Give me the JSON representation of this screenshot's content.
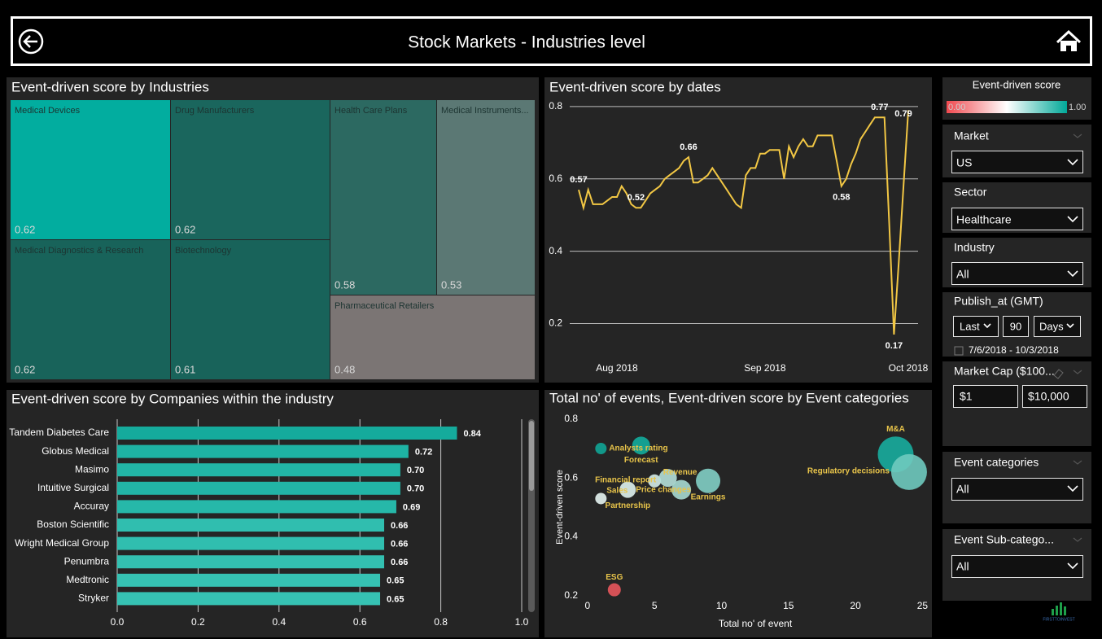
{
  "header": {
    "title": "Stock Markets - Industries level"
  },
  "chart_data": [
    {
      "type": "treemap",
      "title": "Event-driven score by Industries",
      "categories": [
        "Medical Devices",
        "Drug Manufacturers",
        "Medical Diagnostics & Research",
        "Biotechnology",
        "Health Care Plans",
        "Medical Instruments...",
        "Pharmaceutical Retailers"
      ],
      "values": [
        0.62,
        0.62,
        0.62,
        0.61,
        0.58,
        0.53,
        0.48
      ],
      "colors": [
        "#02ad9f",
        "#1a665d",
        "#18635a",
        "#18635a",
        "#2c6961",
        "#5b7874",
        "#7b7574"
      ]
    },
    {
      "type": "line",
      "title": "Event-driven score by dates",
      "categories": [
        null,
        null,
        null,
        null,
        null,
        null,
        null,
        null,
        "Aug 2018",
        null,
        null,
        null,
        null,
        null,
        null,
        null,
        null,
        null,
        null,
        null,
        null,
        null,
        null,
        null,
        null,
        null,
        null,
        null,
        null,
        null,
        null,
        null,
        null,
        null,
        null,
        null,
        null,
        null,
        null,
        "Sep 2018",
        null,
        null,
        null,
        null,
        null,
        null,
        null,
        null,
        null,
        null,
        null,
        null,
        null,
        null,
        null,
        null,
        null,
        null,
        null,
        null,
        null,
        null,
        null,
        null,
        null,
        null,
        null,
        null,
        null,
        "Oct 2018"
      ],
      "values": [
        0.57,
        0.52,
        0.57,
        0.53,
        0.53,
        0.53,
        0.54,
        0.55,
        0.55,
        0.58,
        0.56,
        0.53,
        0.52,
        0.52,
        0.54,
        0.56,
        0.57,
        0.58,
        0.6,
        0.61,
        0.62,
        0.63,
        0.65,
        0.66,
        0.59,
        0.59,
        0.6,
        0.61,
        0.63,
        0.61,
        0.59,
        0.57,
        0.55,
        0.53,
        0.52,
        0.61,
        0.63,
        0.63,
        0.67,
        0.67,
        0.68,
        0.68,
        0.68,
        0.6,
        0.69,
        0.66,
        0.69,
        0.71,
        0.69,
        0.69,
        0.72,
        0.72,
        0.72,
        0.72,
        0.65,
        0.58,
        0.6,
        0.64,
        0.67,
        0.71,
        0.73,
        0.75,
        0.77,
        0.77,
        0.77,
        0.48,
        0.17,
        0.37,
        0.58,
        0.79
      ],
      "value_labels": [
        "0.57",
        null,
        null,
        null,
        null,
        null,
        null,
        null,
        null,
        null,
        null,
        null,
        "0.52",
        null,
        null,
        null,
        null,
        null,
        null,
        null,
        null,
        null,
        null,
        "0.66",
        null,
        null,
        null,
        null,
        null,
        null,
        null,
        null,
        null,
        null,
        null,
        null,
        null,
        null,
        null,
        null,
        null,
        null,
        null,
        null,
        null,
        null,
        null,
        null,
        null,
        null,
        null,
        null,
        null,
        null,
        null,
        "0.58",
        null,
        null,
        null,
        null,
        null,
        null,
        null,
        "0.77",
        null,
        null,
        "0.17",
        null,
        null,
        "0.79"
      ],
      "color": "#f2c744",
      "ylim": [
        0.1,
        0.82
      ],
      "yticks": [
        0.2,
        0.4,
        0.6,
        0.8
      ],
      "grid": true
    },
    {
      "type": "bar",
      "orientation": "horizontal",
      "title": "Event-driven score by Companies within the industry",
      "categories": [
        "Tandem Diabetes Care",
        "Globus Medical",
        "Masimo",
        "Intuitive Surgical",
        "Accuray",
        "Boston Scientific",
        "Wright Medical Group",
        "Penumbra",
        "Medtronic",
        "Stryker"
      ],
      "values": [
        0.84,
        0.72,
        0.7,
        0.7,
        0.69,
        0.66,
        0.66,
        0.66,
        0.65,
        0.65
      ],
      "value_labels": [
        "0.84",
        "0.72",
        "0.70",
        "0.70",
        "0.69",
        "0.66",
        "0.66",
        "0.66",
        "0.65",
        "0.65"
      ],
      "colors": [
        "#15ab9c",
        "#1eb3a4",
        "#22b5a6",
        "#22b5a6",
        "#26b8a9",
        "#30beaf",
        "#30beaf",
        "#33c0b1",
        "#36c2b3",
        "#36c2b3"
      ],
      "xlim": [
        0,
        1
      ],
      "xticks": [
        {
          "value": 0,
          "label": "0.0"
        },
        0.2,
        0.4,
        0.6,
        0.8,
        {
          "value": 1,
          "label": "1.0"
        }
      ],
      "grid": true
    },
    {
      "type": "scatter",
      "title": "Total no' of events, Event-driven score by Event categories",
      "x_label": "Total no' of event",
      "y_label": "Event-driven score",
      "labels": [
        "Analysts rating",
        "Forecast",
        "Financial report",
        "Revenue",
        "Price changes",
        "Earnings",
        "Sales",
        "Partnership",
        "ESG",
        "M&A",
        "Regulatory decisions"
      ],
      "x": [
        1,
        4,
        5,
        6,
        7,
        9,
        3,
        1,
        2,
        23,
        24
      ],
      "values": [
        0.7,
        0.71,
        0.59,
        0.6,
        0.56,
        0.59,
        0.56,
        0.53,
        0.22,
        0.68,
        0.62
      ],
      "sizes": [
        7,
        11,
        8,
        11,
        12,
        15,
        10,
        7,
        8,
        22,
        22
      ],
      "colors": [
        "#11a596",
        "#13ad9d",
        "#d4ece8",
        "#b5e0d9",
        "#a7dad2",
        "#82cfc5",
        "#dff2ef",
        "#e6f4f2",
        "#e8575c",
        "#18ad9e",
        "#6fcabf"
      ],
      "label_color": "#e8c44a",
      "xlim": [
        -0.6,
        25.4
      ],
      "ylim": [
        0.18,
        0.83
      ],
      "xticks": [
        0,
        5,
        10,
        15,
        20,
        25
      ],
      "yticks": [
        0.2,
        0.4,
        0.6,
        0.8
      ]
    }
  ],
  "color_legend": {
    "title": "Event-driven score",
    "min": "0.00",
    "max": "1.00"
  },
  "filters": {
    "market": {
      "label": "Market",
      "value": "US"
    },
    "sector": {
      "label": "Sector",
      "value": "Healthcare"
    },
    "industry": {
      "label": "Industry",
      "value": "All"
    },
    "publish": {
      "label": "Publish_at (GMT)",
      "mode": "Last",
      "count": "90",
      "unit": "Days",
      "range": "7/6/2018 - 10/3/2018"
    },
    "market_cap": {
      "label": "Market Cap ($100...",
      "min": "$1",
      "max": "$10,000"
    },
    "event_categories": {
      "label": "Event categories",
      "value": "All"
    },
    "event_subcategories": {
      "label": "Event Sub-catego...",
      "value": "All"
    }
  },
  "logo": "FIRSTTOINVEST"
}
